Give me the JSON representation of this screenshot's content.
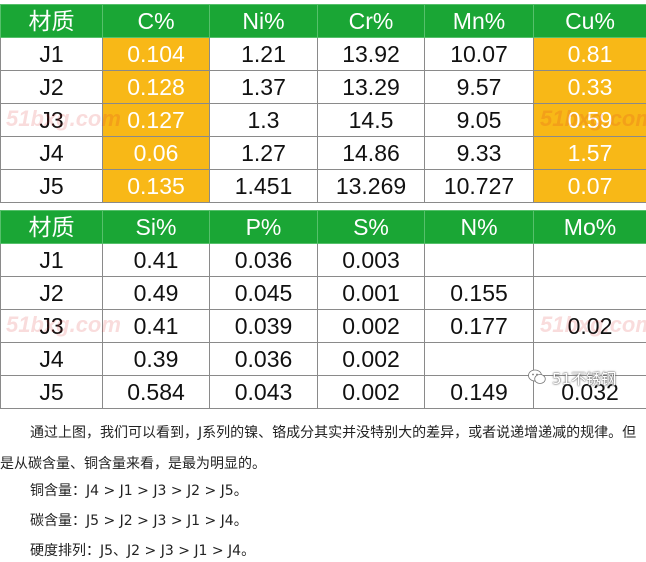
{
  "table1": {
    "headers": [
      "材质",
      "C%",
      "Ni%",
      "Cr%",
      "Mn%",
      "Cu%"
    ],
    "rows": [
      [
        "J1",
        "0.104",
        "1.21",
        "13.92",
        "10.07",
        "0.81"
      ],
      [
        "J2",
        "0.128",
        "1.37",
        "13.29",
        "9.57",
        "0.33"
      ],
      [
        "J3",
        "0.127",
        "1.3",
        "14.5",
        "9.05",
        "0.59"
      ],
      [
        "J4",
        "0.06",
        "1.27",
        "14.86",
        "9.33",
        "1.57"
      ],
      [
        "J5",
        "0.135",
        "1.451",
        "13.269",
        "10.727",
        "0.07"
      ]
    ]
  },
  "table2": {
    "headers": [
      "材质",
      "Si%",
      "P%",
      "S%",
      "N%",
      "Mo%"
    ],
    "rows": [
      [
        "J1",
        "0.41",
        "0.036",
        "0.003",
        "",
        ""
      ],
      [
        "J2",
        "0.49",
        "0.045",
        "0.001",
        "0.155",
        ""
      ],
      [
        "J3",
        "0.41",
        "0.039",
        "0.002",
        "0.177",
        "0.02"
      ],
      [
        "J4",
        "0.39",
        "0.036",
        "0.002",
        "",
        ""
      ],
      [
        "J5",
        "0.584",
        "0.043",
        "0.002",
        "0.149",
        "0.032"
      ]
    ]
  },
  "colors": {
    "header_green": "#1aa635",
    "highlight_orange": "#f8b817"
  },
  "watermark": "51bxg.com",
  "wechat_label": "51不锈钢",
  "paragraphs": [
    "通过上图，我们可以看到，J系列的镍、铬成分其实并没特别大的差异，或者说递增递减的规律。但是从碳含量、铜含量来看，是最为明显的。",
    "铜含量：J4 > J1 > J3 > J2 > J5。",
    "碳含量：J5 > J2 > J3 > J1 > J4。",
    "硬度排列：J5、J2 > J3 > J1 > J4。"
  ]
}
